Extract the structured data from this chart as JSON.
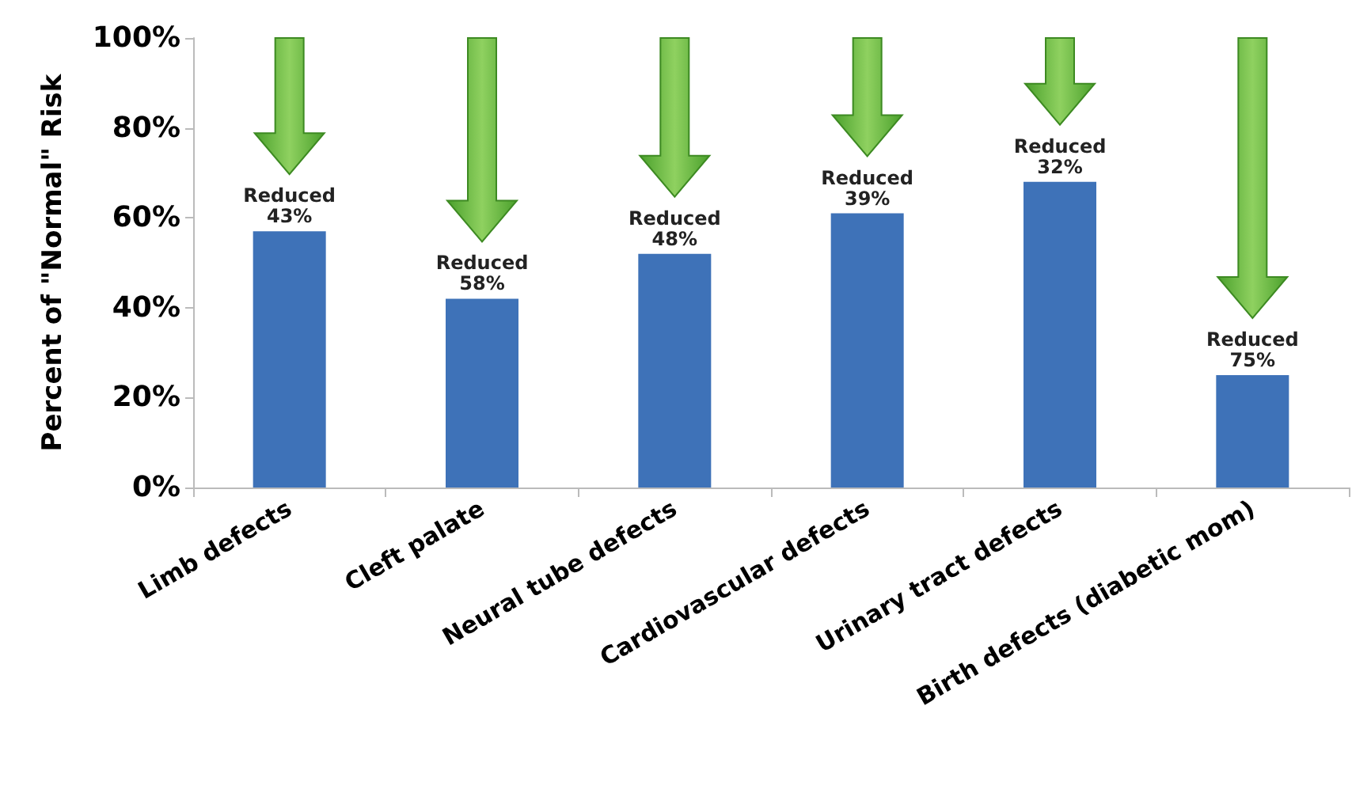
{
  "chart_data": {
    "type": "bar",
    "ylabel": "Percent of \"Normal\" Risk",
    "categories": [
      "Limb defects",
      "Cleft palate",
      "Neural tube defects",
      "Cardiovascular defects",
      "Urinary tract defects",
      "Birth defects (diabetic mom)"
    ],
    "values": [
      57,
      42,
      52,
      61,
      68,
      25
    ],
    "value_labels": [
      "Reduced\n43%",
      "Reduced\n58%",
      "Reduced\n48%",
      "Reduced\n39%",
      "Reduced\n32%",
      "Reduced\n75%"
    ],
    "color": "#3e72b8",
    "ylim": [
      0,
      100
    ],
    "yticks": [
      {
        "value": 0,
        "label": "0%"
      },
      {
        "value": 20,
        "label": "20%"
      },
      {
        "value": 40,
        "label": "40%"
      },
      {
        "value": 60,
        "label": "60%"
      },
      {
        "value": 80,
        "label": "80%"
      },
      {
        "value": 100,
        "label": "100%"
      }
    ],
    "grid": false
  }
}
